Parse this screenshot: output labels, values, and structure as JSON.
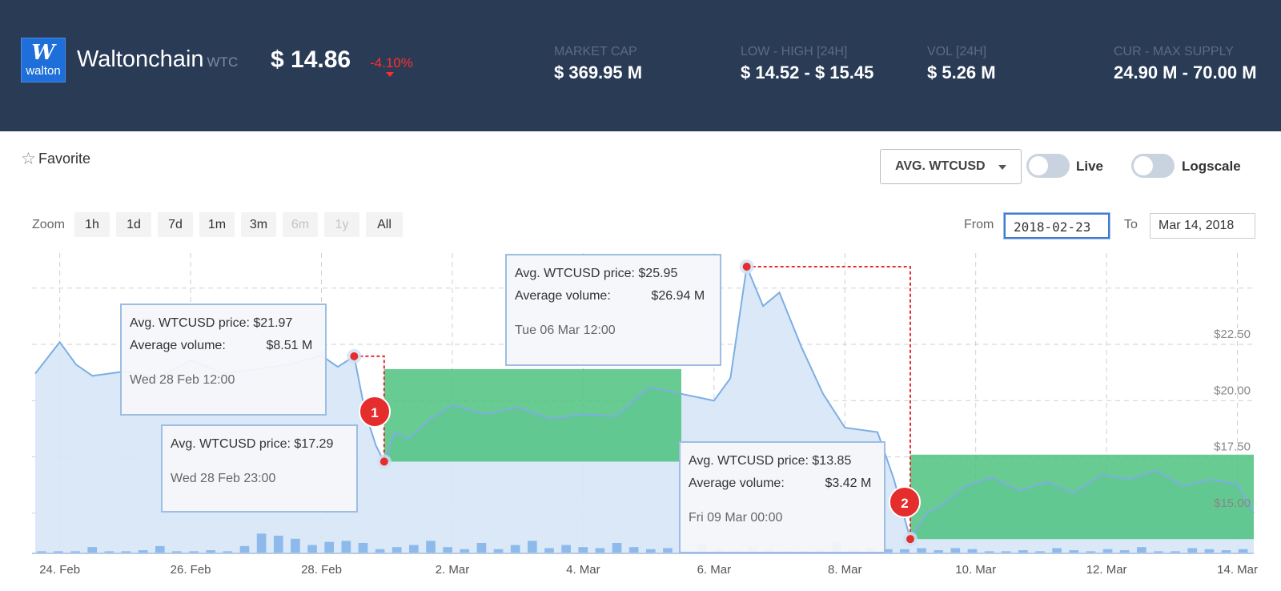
{
  "header": {
    "logo": {
      "mark": "W",
      "text": "walton"
    },
    "coin_name": "Waltonchain",
    "coin_symbol": "WTC",
    "price": "$ 14.86",
    "change": "-4.10%",
    "stats": [
      {
        "label": "MARKET CAP",
        "value": "$ 369.95 M"
      },
      {
        "label": "LOW - HIGH [24H]",
        "value": "$ 14.52 - $ 15.45"
      },
      {
        "label": "VOL [24H]",
        "value": "$ 5.26 M"
      },
      {
        "label": "CUR - MAX SUPPLY",
        "value": "24.90 M - 70.00 M"
      }
    ]
  },
  "controls": {
    "favorite_label": "Favorite",
    "pair_select": "AVG. WTCUSD",
    "live_label": "Live",
    "logscale_label": "Logscale",
    "live_on": false,
    "logscale_on": false
  },
  "zoom": {
    "label": "Zoom",
    "buttons": [
      {
        "label": "1h",
        "disabled": false
      },
      {
        "label": "1d",
        "disabled": false
      },
      {
        "label": "7d",
        "disabled": false
      },
      {
        "label": "1m",
        "disabled": false
      },
      {
        "label": "3m",
        "disabled": false
      },
      {
        "label": "6m",
        "disabled": true
      },
      {
        "label": "1y",
        "disabled": true
      },
      {
        "label": "All",
        "disabled": false
      }
    ],
    "from_label": "From",
    "from_value": "2018-02-23",
    "to_label": "To",
    "to_value": "Mar 14, 2018"
  },
  "tooltips": [
    {
      "price_label": "Avg. WTCUSD price:",
      "price": "$21.97",
      "vol_label": "Average volume:",
      "vol": "$8.51 M",
      "time": "Wed 28 Feb 12:00"
    },
    {
      "price_label": "Avg. WTCUSD price:",
      "price": "$17.29",
      "time": "Wed 28 Feb 23:00"
    },
    {
      "price_label": "Avg. WTCUSD price:",
      "price": "$25.95",
      "vol_label": "Average volume:",
      "vol": "$26.94 M",
      "time": "Tue 06 Mar 12:00"
    },
    {
      "price_label": "Avg. WTCUSD price:",
      "price": "$13.85",
      "vol_label": "Average volume:",
      "vol": "$3.42 M",
      "time": "Fri 09 Mar 00:00"
    }
  ],
  "annotations": [
    {
      "label": "1"
    },
    {
      "label": "2"
    }
  ],
  "colors": {
    "header_bg": "#2a3b56",
    "line": "#7eaee4",
    "area": "#d6e6f7",
    "volume": "#7fb1e8",
    "highlight": "#4cc27f",
    "negative": "#ff2e2e",
    "annotation": "#e52d2d"
  },
  "chart_data": {
    "type": "area",
    "x_tick_labels": [
      "24. Feb",
      "26. Feb",
      "28. Feb",
      "2. Mar",
      "4. Mar",
      "6. Mar",
      "8. Mar",
      "10. Mar",
      "12. Mar",
      "14. Mar"
    ],
    "y_tick_labels": [
      "$15.00",
      "$17.50",
      "$20.00",
      "$22.50"
    ],
    "xlim": [
      "2018-02-23T15:00",
      "2018-03-14T06:00"
    ],
    "ylim": [
      13.5,
      25.95
    ],
    "grid": true,
    "series": [
      {
        "x": [
          "2018-02-23T15:00",
          "2018-02-24T00:00",
          "2018-02-24T06:00",
          "2018-02-24T12:00",
          "2018-02-25T00:00",
          "2018-02-25T12:00",
          "2018-02-26T00:00",
          "2018-02-26T12:00",
          "2018-02-27T00:00",
          "2018-02-27T12:00",
          "2018-02-28T00:00",
          "2018-02-28T06:00",
          "2018-02-28T12:00",
          "2018-02-28T16:00",
          "2018-02-28T20:00",
          "2018-02-28T23:00",
          "2018-03-01T03:00",
          "2018-03-01T08:00",
          "2018-03-01T16:00",
          "2018-03-02T00:00",
          "2018-03-02T12:00",
          "2018-03-03T00:00",
          "2018-03-03T12:00",
          "2018-03-04T00:00",
          "2018-03-04T12:00",
          "2018-03-05T00:00",
          "2018-03-05T12:00",
          "2018-03-06T00:00",
          "2018-03-06T06:00",
          "2018-03-06T12:00",
          "2018-03-06T18:00",
          "2018-03-07T00:00",
          "2018-03-07T08:00",
          "2018-03-07T16:00",
          "2018-03-08T00:00",
          "2018-03-08T12:00",
          "2018-03-08T18:00",
          "2018-03-09T00:00",
          "2018-03-09T06:00",
          "2018-03-09T12:00",
          "2018-03-09T20:00",
          "2018-03-10T06:00",
          "2018-03-10T16:00",
          "2018-03-11T02:00",
          "2018-03-11T12:00",
          "2018-03-11T22:00",
          "2018-03-12T08:00",
          "2018-03-12T18:00",
          "2018-03-13T04:00",
          "2018-03-13T14:00",
          "2018-03-14T00:00",
          "2018-03-14T06:00"
        ],
        "values": [
          21.2,
          22.6,
          21.6,
          21.1,
          21.3,
          21.0,
          21.8,
          21.2,
          21.4,
          21.6,
          22.0,
          21.5,
          21.97,
          19.5,
          18.0,
          17.29,
          18.6,
          18.3,
          19.2,
          19.8,
          19.4,
          19.7,
          19.2,
          19.4,
          19.3,
          20.6,
          20.3,
          20.0,
          21.0,
          25.95,
          24.2,
          24.8,
          22.4,
          20.3,
          18.8,
          18.6,
          16.5,
          13.85,
          15.0,
          15.4,
          16.2,
          16.6,
          16.0,
          16.4,
          15.9,
          16.7,
          16.5,
          16.9,
          16.2,
          16.5,
          16.3,
          15.0
        ]
      }
    ],
    "volume_relative": [
      0.1,
      0.1,
      0.1,
      0.3,
      0.1,
      0.1,
      0.15,
      0.35,
      0.1,
      0.1,
      0.15,
      0.1,
      0.35,
      0.95,
      0.85,
      0.7,
      0.4,
      0.55,
      0.6,
      0.5,
      0.2,
      0.3,
      0.4,
      0.6,
      0.3,
      0.2,
      0.5,
      0.2,
      0.4,
      0.6,
      0.25,
      0.4,
      0.3,
      0.25,
      0.5,
      0.3,
      0.2,
      0.25,
      0.15,
      0.45,
      0.2,
      0.15,
      0.3,
      0.2,
      0.1,
      0.1,
      0.2,
      0.55,
      0.2,
      0.25,
      0.2,
      0.2,
      0.25,
      0.15,
      0.25,
      0.2,
      0.1,
      0.1,
      0.15,
      0.1,
      0.25,
      0.15,
      0.1,
      0.2,
      0.15,
      0.3,
      0.1,
      0.1,
      0.25,
      0.2,
      0.15,
      0.2
    ],
    "highlight_ranges": [
      {
        "x": [
          "2018-02-28T23:00",
          "2018-03-05T12:00"
        ],
        "y": [
          17.29,
          21.4
        ]
      },
      {
        "x": [
          "2018-03-09T00:00",
          "2018-03-14T06:00"
        ],
        "y": [
          13.85,
          17.6
        ]
      }
    ]
  }
}
